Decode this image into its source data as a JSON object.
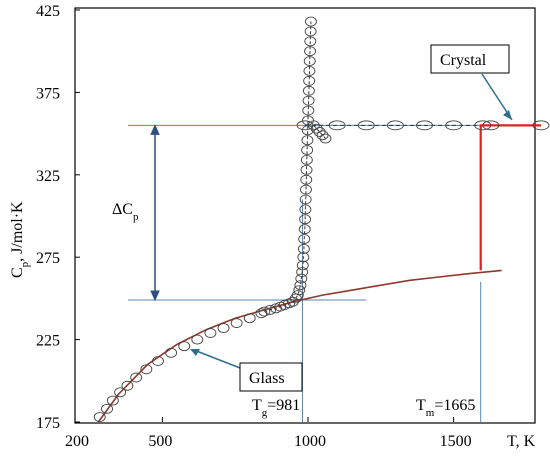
{
  "chart_data": {
    "type": "scatter",
    "xlabel": "T, K",
    "ylabel_main": "C",
    "ylabel_sub": "p",
    "ylabel_rest": ", J/mol·K",
    "xlim": [
      200,
      1800
    ],
    "ylim": [
      175,
      425
    ],
    "x_ticks": [
      200,
      500,
      1000,
      1500
    ],
    "y_ticks": [
      175,
      225,
      275,
      325,
      375,
      425
    ],
    "grid": false,
    "annotations": {
      "crystal": "Crystal",
      "glass": "Glass",
      "delta_cp_main": "ΔC",
      "delta_cp_sub": "p",
      "tg_main": "T",
      "tg_sub": "g",
      "tg_value": "=981",
      "tm_main": "T",
      "tm_sub": "m",
      "tm_value": "=1665"
    },
    "reference_lines": {
      "upper_level": 355,
      "lower_level": 249,
      "tg": 981,
      "tm": 1665
    },
    "series": [
      {
        "kind": "glass-model-curve",
        "color": "#8b3a2a",
        "points": [
          [
            280,
            175
          ],
          [
            350,
            192
          ],
          [
            450,
            210
          ],
          [
            550,
            222
          ],
          [
            650,
            231
          ],
          [
            750,
            238
          ],
          [
            850,
            243
          ],
          [
            950,
            248
          ],
          [
            1050,
            252
          ],
          [
            1150,
            255
          ],
          [
            1250,
            258
          ],
          [
            1350,
            261
          ],
          [
            1450,
            263
          ],
          [
            1550,
            265
          ],
          [
            1665,
            267
          ]
        ]
      },
      {
        "kind": "crystal-step",
        "color": "#e02020",
        "points": [
          [
            1665,
            267
          ],
          [
            1665,
            355
          ],
          [
            1800,
            355
          ]
        ]
      },
      {
        "kind": "glass-measured",
        "points": [
          [
            285,
            178
          ],
          [
            310,
            183
          ],
          [
            330,
            188
          ],
          [
            355,
            193
          ],
          [
            380,
            197
          ],
          [
            410,
            202
          ],
          [
            445,
            207
          ],
          [
            485,
            212
          ],
          [
            530,
            217
          ],
          [
            575,
            221
          ],
          [
            620,
            225
          ],
          [
            665,
            229
          ],
          [
            710,
            232
          ],
          [
            755,
            235
          ],
          [
            800,
            238
          ],
          [
            840,
            241
          ]
        ]
      },
      {
        "kind": "transition-measured",
        "points": [
          [
            850,
            242
          ],
          [
            870,
            243
          ],
          [
            890,
            244
          ],
          [
            905,
            245
          ],
          [
            920,
            246
          ],
          [
            935,
            247
          ],
          [
            948,
            248
          ],
          [
            958,
            250
          ],
          [
            965,
            252
          ],
          [
            970,
            255
          ],
          [
            974,
            258
          ],
          [
            977,
            262
          ],
          [
            980,
            266
          ],
          [
            982,
            270
          ],
          [
            984,
            275
          ],
          [
            986,
            280
          ],
          [
            987,
            286
          ],
          [
            989,
            292
          ],
          [
            990,
            298
          ],
          [
            991,
            304
          ],
          [
            992,
            310
          ],
          [
            993,
            316
          ],
          [
            994,
            322
          ],
          [
            995,
            328
          ],
          [
            996,
            334
          ],
          [
            997,
            340
          ],
          [
            998,
            346
          ],
          [
            999,
            352
          ],
          [
            1000,
            358
          ],
          [
            1001,
            364
          ],
          [
            1002,
            370
          ],
          [
            1003,
            376
          ],
          [
            1004,
            382
          ],
          [
            1005,
            388
          ],
          [
            1006,
            394
          ],
          [
            1007,
            400
          ],
          [
            1008,
            406
          ],
          [
            1009,
            412
          ],
          [
            1010,
            418
          ]
        ]
      },
      {
        "kind": "supercooled-drop",
        "points": [
          [
            1020,
            355
          ],
          [
            1030,
            353
          ],
          [
            1040,
            351
          ],
          [
            1050,
            349
          ],
          [
            1060,
            347
          ]
        ]
      },
      {
        "kind": "crystal-measured",
        "points": [
          [
            990,
            355
          ],
          [
            1100,
            355
          ],
          [
            1200,
            355
          ],
          [
            1300,
            355
          ],
          [
            1400,
            355
          ],
          [
            1500,
            355
          ],
          [
            1600,
            355
          ],
          [
            1700,
            355
          ],
          [
            1800,
            355
          ]
        ]
      }
    ]
  }
}
